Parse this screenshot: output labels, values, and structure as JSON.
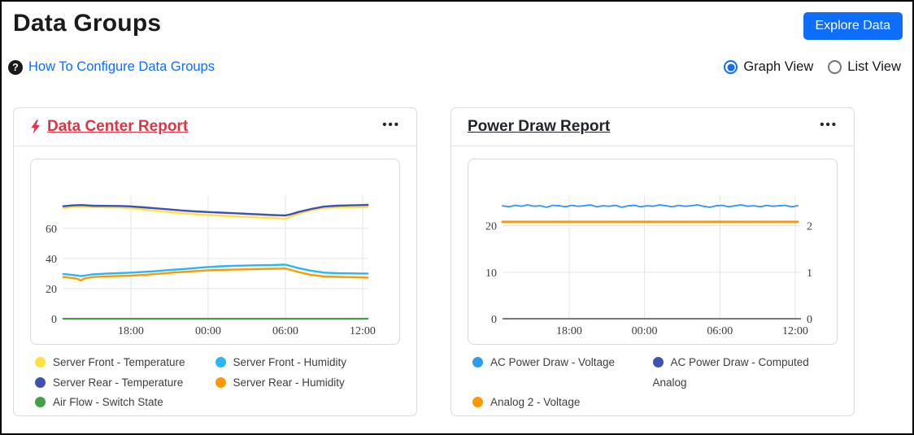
{
  "page": {
    "title": "Data Groups"
  },
  "header": {
    "explore_button": "Explore Data"
  },
  "help": {
    "icon_glyph": "?",
    "link": "How To Configure Data Groups"
  },
  "view_toggle": {
    "options": [
      {
        "label": "Graph View",
        "selected": true
      },
      {
        "label": "List View",
        "selected": false
      }
    ]
  },
  "colors": {
    "primary_blue": "#0d6efd",
    "alert_red": "#dc3545",
    "text_dark": "#212529"
  },
  "cards": [
    {
      "title": "Data Center Report",
      "title_color": "#dc3545",
      "alert_icon": "lightning-bolt",
      "menu_glyph": "•••"
    },
    {
      "title": "Power Draw Report",
      "title_color": "#212529",
      "alert_icon": null,
      "menu_glyph": "•••"
    }
  ],
  "chart_data": [
    {
      "type": "line",
      "title": "Data Center Report",
      "xlabel": "",
      "ylabel": "",
      "x_domain": [
        12.7,
        36.45
      ],
      "x_ticks": [
        {
          "value": 18,
          "label": "18:00"
        },
        {
          "value": 24,
          "label": "00:00"
        },
        {
          "value": 30,
          "label": "06:00"
        },
        {
          "value": 36,
          "label": "12:00"
        }
      ],
      "ylim": [
        0,
        82
      ],
      "y_ticks": [
        {
          "value": 0,
          "label": "0"
        },
        {
          "value": 20,
          "label": "20"
        },
        {
          "value": 40,
          "label": "40"
        },
        {
          "value": 60,
          "label": "60"
        }
      ],
      "grid": true,
      "legend_position": "bottom",
      "series": [
        {
          "name": "Air Flow - Switch State",
          "color": "#43A047",
          "axis": "left",
          "width": 2.2,
          "x": [
            12.75,
            36.4
          ],
          "values": [
            0,
            0
          ]
        },
        {
          "name": "Server Front - Temperature",
          "color": "#FFE240",
          "axis": "left",
          "width": 2.4,
          "x": [
            12.75,
            13.5,
            14.2,
            15,
            16,
            17,
            17.8,
            19,
            20,
            21,
            22,
            23,
            24,
            25,
            26,
            27,
            28,
            29,
            29.6,
            30,
            30.4,
            31,
            32,
            33,
            34,
            35,
            36,
            36.4
          ],
          "values": [
            73.4,
            74.2,
            74.3,
            74.0,
            73.9,
            73.8,
            73.5,
            72.5,
            71.6,
            70.8,
            70.0,
            69.3,
            68.8,
            68.4,
            68.0,
            67.6,
            67.2,
            66.9,
            66.6,
            66.2,
            67.6,
            69.6,
            71.9,
            73.5,
            73.9,
            73.8,
            74.0,
            74.2
          ]
        },
        {
          "name": "Server Rear - Temperature",
          "color": "#3F51B5",
          "axis": "left",
          "width": 2.4,
          "x": [
            12.75,
            13.5,
            14.2,
            15,
            16,
            17,
            17.8,
            19,
            20,
            21,
            22,
            23,
            24,
            25,
            26,
            27,
            28,
            29,
            29.6,
            30,
            30.4,
            31,
            32,
            33,
            34,
            35,
            36,
            36.4
          ],
          "values": [
            74.6,
            75.2,
            75.4,
            75.0,
            74.9,
            74.8,
            74.6,
            73.9,
            73.2,
            72.5,
            71.8,
            71.2,
            70.8,
            70.4,
            70.0,
            69.6,
            69.2,
            68.8,
            68.6,
            68.5,
            69.2,
            70.8,
            72.8,
            74.4,
            75.0,
            75.2,
            75.4,
            75.5
          ]
        },
        {
          "name": "Server Rear - Humidity",
          "color": "#FF9800",
          "axis": "left",
          "width": 2.4,
          "x": [
            12.75,
            13.2,
            13.8,
            14.1,
            14.4,
            15,
            16,
            17,
            18,
            19,
            20,
            21,
            22,
            23,
            24,
            25,
            26,
            27,
            28,
            29,
            29.7,
            30,
            30.3,
            31,
            32,
            33,
            34,
            35,
            36,
            36.4
          ],
          "values": [
            27.7,
            27.3,
            26.6,
            25.4,
            26.7,
            27.6,
            28.1,
            28.4,
            28.6,
            29.1,
            29.7,
            30.4,
            31.0,
            31.6,
            32.1,
            32.4,
            32.6,
            32.8,
            33.0,
            33.2,
            33.3,
            33.4,
            32.7,
            31.0,
            29.1,
            28.1,
            27.8,
            27.6,
            27.4,
            27.3
          ]
        },
        {
          "name": "Server Front - Humidity",
          "color": "#29B6F6",
          "axis": "left",
          "width": 2.4,
          "x": [
            12.75,
            13.2,
            13.8,
            14.1,
            14.4,
            15,
            16,
            17,
            18,
            19,
            20,
            21,
            22,
            23,
            24,
            25,
            26,
            27,
            28,
            29,
            29.7,
            30,
            30.3,
            31,
            32,
            33,
            34,
            35,
            36,
            36.4
          ],
          "values": [
            29.6,
            29.3,
            28.7,
            28.3,
            28.6,
            29.4,
            29.9,
            30.2,
            30.6,
            31.1,
            31.6,
            32.3,
            32.9,
            33.6,
            34.3,
            34.8,
            35.1,
            35.3,
            35.5,
            35.6,
            35.8,
            35.9,
            35.3,
            33.6,
            31.9,
            30.6,
            30.2,
            30.1,
            30.0,
            30.0
          ]
        }
      ],
      "legend": [
        {
          "label": "Server Front - Temperature",
          "color": "#FFE240"
        },
        {
          "label": "Server Front - Humidity",
          "color": "#29B6F6"
        },
        {
          "label": "Server Rear - Temperature",
          "color": "#3F51B5"
        },
        {
          "label": "Server Rear - Humidity",
          "color": "#FF9800"
        },
        {
          "label": "Air Flow - Switch State",
          "color": "#43A047"
        }
      ]
    },
    {
      "type": "line",
      "title": "Power Draw Report",
      "xlabel": "",
      "ylabel": "",
      "x_domain": [
        12.7,
        36.45
      ],
      "x_ticks": [
        {
          "value": 18,
          "label": "18:00"
        },
        {
          "value": 24,
          "label": "00:00"
        },
        {
          "value": 30,
          "label": "06:00"
        },
        {
          "value": 36,
          "label": "12:00"
        }
      ],
      "ylim": [
        0,
        26.6
      ],
      "y_ticks": [
        {
          "value": 0,
          "label": "0"
        },
        {
          "value": 10,
          "label": "10"
        },
        {
          "value": 20,
          "label": "20"
        }
      ],
      "right_ylim": [
        0,
        2.66
      ],
      "right_y_ticks": [
        {
          "value": 0,
          "label": "0"
        },
        {
          "value": 1,
          "label": "1"
        },
        {
          "value": 2,
          "label": "2"
        }
      ],
      "grid": true,
      "legend_position": "bottom",
      "series": [
        {
          "name": "AC Power Draw - Computed Analog",
          "color": "#3F51B5",
          "axis": "right",
          "width": 1.6,
          "x_start": 12.7,
          "x_step": 0.5,
          "values": [
            2.43,
            2.41,
            2.44,
            2.42,
            2.45,
            2.42,
            2.43,
            2.4,
            2.44,
            2.43,
            2.41,
            2.44,
            2.42,
            2.43,
            2.45,
            2.41,
            2.43,
            2.42,
            2.44,
            2.4,
            2.43,
            2.44,
            2.41,
            2.43,
            2.42,
            2.45,
            2.43,
            2.41,
            2.44,
            2.42,
            2.43,
            2.45,
            2.42,
            2.4,
            2.43,
            2.44,
            2.41,
            2.43,
            2.45,
            2.42,
            2.43,
            2.41,
            2.44,
            2.42,
            2.43,
            2.44,
            2.41,
            2.43
          ]
        },
        {
          "name": "Analog 2 - Voltage",
          "color": "#FF9800",
          "axis": "left",
          "width": 3,
          "x": [
            12.7,
            36.2
          ],
          "values": [
            20.85,
            20.85
          ]
        },
        {
          "name": "AC Power Draw - Voltage",
          "color": "#2D9CF4",
          "axis": "left",
          "width": 1.7,
          "x_start": 12.7,
          "x_step": 0.5,
          "values": [
            24.3,
            24.1,
            24.4,
            24.2,
            24.5,
            24.2,
            24.3,
            24.0,
            24.4,
            24.3,
            24.1,
            24.4,
            24.2,
            24.3,
            24.5,
            24.1,
            24.3,
            24.2,
            24.4,
            24.0,
            24.3,
            24.4,
            24.1,
            24.3,
            24.2,
            24.5,
            24.3,
            24.1,
            24.4,
            24.2,
            24.3,
            24.5,
            24.2,
            24.0,
            24.3,
            24.4,
            24.1,
            24.3,
            24.5,
            24.2,
            24.3,
            24.1,
            24.4,
            24.2,
            24.3,
            24.4,
            24.1,
            24.3
          ]
        }
      ],
      "legend": [
        {
          "label": "AC Power Draw - Voltage",
          "color": "#2D9CF4"
        },
        {
          "label": "AC Power Draw - Computed Analog",
          "color": "#3F51B5"
        },
        {
          "label": "Analog 2 - Voltage",
          "color": "#FF9800"
        }
      ]
    }
  ]
}
